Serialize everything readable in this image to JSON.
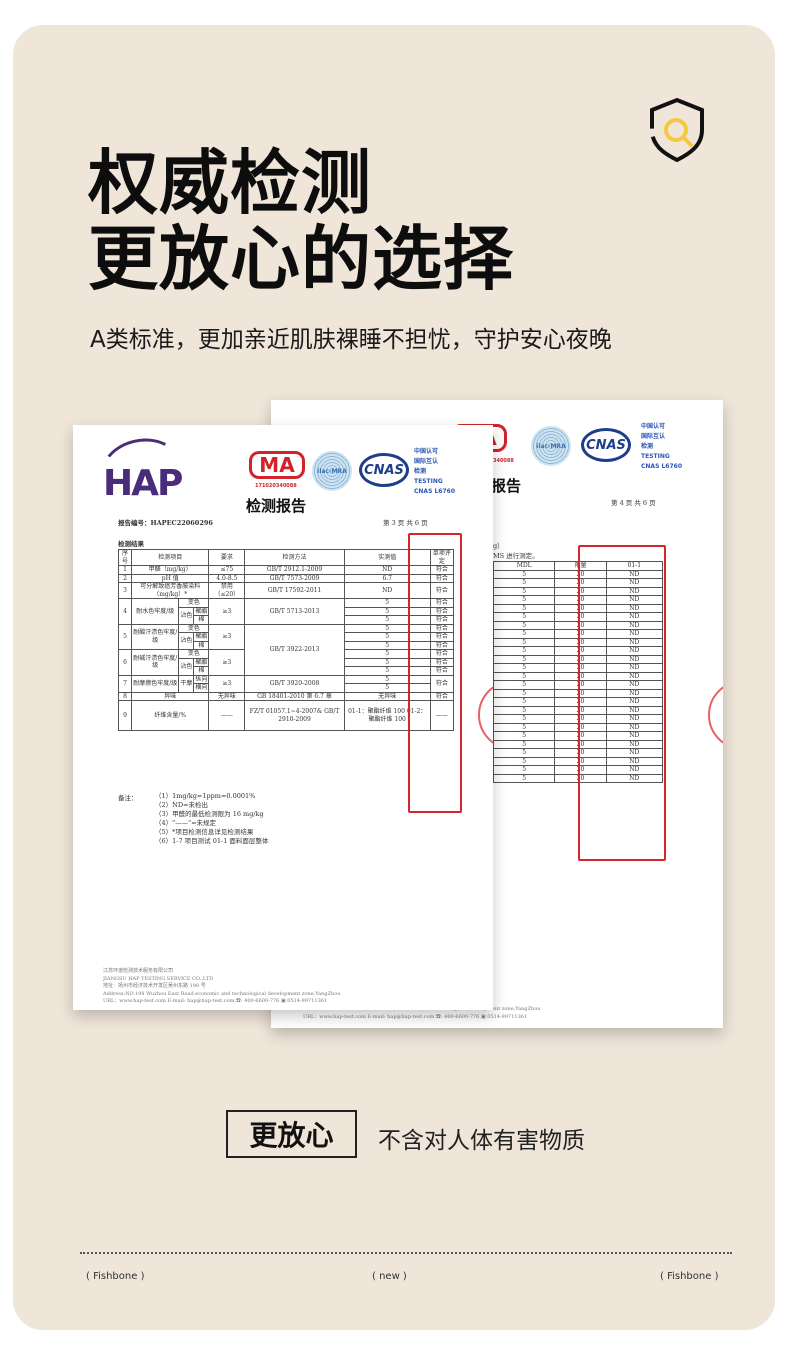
{
  "header": {
    "title_line1": "权威检测",
    "title_line2": "更放心的选择",
    "subtitle": "A类标准，更加亲近肌肤裸睡不担忧，守护安心夜晚",
    "icon": "shield-search-icon",
    "accent": "#f5c842"
  },
  "back_doc": {
    "cma": "MA",
    "cma_code": "340088",
    "ilac": "ilac-MRA",
    "cnas": "CNAS",
    "cnas_text": [
      "中国认可",
      "国际互认",
      "检测",
      "TESTING",
      "CNAS L6760"
    ],
    "title": "测报告",
    "page": "第 4 页 共 6 页",
    "intro": [
      "g）",
      "MS 进行测定。"
    ],
    "headers": [
      "MDL",
      "限量",
      "01-1"
    ],
    "rows": [
      [
        "5",
        "20",
        "ND"
      ],
      [
        "5",
        "20",
        "ND"
      ],
      [
        "5",
        "20",
        "ND"
      ],
      [
        "5",
        "20",
        "ND"
      ],
      [
        "5",
        "20",
        "ND"
      ],
      [
        "5",
        "20",
        "ND"
      ],
      [
        "5",
        "20",
        "ND"
      ],
      [
        "5",
        "20",
        "ND"
      ],
      [
        "5",
        "20",
        "ND"
      ],
      [
        "5",
        "20",
        "ND"
      ],
      [
        "5",
        "20",
        "ND"
      ],
      [
        "5",
        "20",
        "ND"
      ],
      [
        "5",
        "20",
        "ND"
      ],
      [
        "5",
        "20",
        "ND"
      ],
      [
        "5",
        "20",
        "ND"
      ],
      [
        "5",
        "20",
        "ND"
      ],
      [
        "5",
        "20",
        "ND"
      ],
      [
        "5",
        "20",
        "ND"
      ],
      [
        "5",
        "20",
        "ND"
      ],
      [
        "5",
        "20",
        "ND"
      ],
      [
        "5",
        "20",
        "ND"
      ],
      [
        "5",
        "20",
        "ND"
      ],
      [
        "5",
        "20",
        "ND"
      ],
      [
        "5",
        "20",
        "ND"
      ],
      [
        "5",
        "20",
        "ND"
      ]
    ],
    "footer": [
      "Address:NO.198 Wuzhou East Road,economic and technological development zone,YangZhou",
      "URL：www.hap-test.com      E-mail: hap@hap-test.com      ☎: 400-6600-776   ▣ 0514-89711361"
    ]
  },
  "front_doc": {
    "logo": "HAP",
    "cma": "MA",
    "cma_code": "171020340088",
    "ilac": "ilac-MRA",
    "cnas": "CNAS",
    "cnas_text": [
      "中国认可",
      "国际互认",
      "检测",
      "TESTING",
      "CNAS L6760"
    ],
    "title": "检测报告",
    "report_no": "报告编号：HAPEC22060296",
    "page": "第 3 页 共 6 页",
    "section": "检测结果",
    "headers": [
      "序号",
      "检测项目",
      "要求",
      "检测方法",
      "实测值",
      "单项评定"
    ],
    "r1": [
      "1",
      "甲醛（mg/kg）",
      "≤75",
      "GB/T 2912.1-2009",
      "ND",
      "符合"
    ],
    "r2": [
      "2",
      "pH 值",
      "4.0-8.5",
      "GB/T 7573-2009",
      "6.7",
      "符合"
    ],
    "r3": [
      "3",
      "可分解致癌芳香胺染料（mg/kg）*",
      "禁用（≤20）",
      "GB/T 17592-2011",
      "ND",
      "符合"
    ],
    "r4": {
      "no": "4",
      "item": "耐水色牢度/级",
      "req": "≥3",
      "method": "GB/T 5713-2013"
    },
    "r5": {
      "no": "5",
      "item": "耐酸汗渍色牢度/级",
      "req": "≥3",
      "method": "GB/T 3922-2013"
    },
    "r6": {
      "no": "6",
      "item": "耐碱汗渍色牢度/级",
      "req": "≥3"
    },
    "r7": {
      "no": "7",
      "item": "耐摩擦色牢度/级",
      "sub": "干摩",
      "a": "纵向",
      "b": "横向",
      "req": "≥3",
      "method": "GB/T 3920-2008"
    },
    "r8": [
      "8",
      "异味",
      "无异味",
      "GB 18401-2010 第 6.7 章",
      "无异味",
      "符合"
    ],
    "r9": [
      "9",
      "纤维含量/%",
      "——",
      "FZ/T 01057.1~4-2007& GB/T 2910-2009",
      "01-1：聚酯纤维 100 01-2：聚酯纤维 100",
      "——"
    ],
    "labels": {
      "change": "变色",
      "stain": "沾色",
      "polyester": "聚酯",
      "cotton": "棉",
      "value": "5",
      "pass": "符合"
    },
    "notes_label": "备注：",
    "notes": [
      "（1）1mg/kg=1ppm=0.0001%",
      "（2）ND=未检出",
      "（3）甲醛的最低检测限为 16 mg/kg",
      "（4）\"——\"=未规定",
      "（5）*项目检测信息详见检测结果",
      "（6）1-7 项目测试 01-1 面料面层整体"
    ],
    "footer": [
      "江苏环谱检测技术服务有限公司",
      "JIANGSU HAP TESTING SERVICE CO.,LTD",
      "地址：扬州市经济技术开发区吴州东路 198 号",
      "Address:NO.198 Wuzhou East Road,economic and technological development zone,YangZhou",
      "URL：www.hap-test.com      E-mail: hap@hap-test.com      ☎: 400-6600-776   ▣ 0514-89711361"
    ],
    "watermark": "HAP"
  },
  "feature": {
    "tag": "更放心",
    "text": "不含对人体有害物质"
  },
  "footer": {
    "left": "( Fishbone )",
    "center": "( new        )",
    "right": "( Fishbone   )"
  }
}
